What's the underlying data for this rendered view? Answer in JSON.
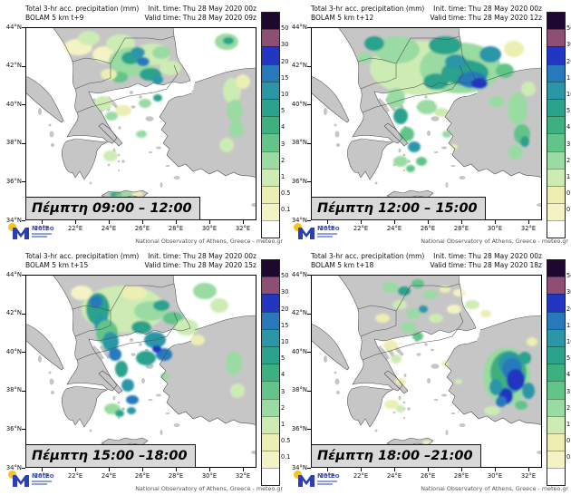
{
  "attribution": "National Observatory of Athens, Greece - meteo.gr",
  "logo": {
    "brand": "Meteo"
  },
  "axes": {
    "lat": [
      "44°N",
      "42°N",
      "40°N",
      "38°N",
      "36°N",
      "34°N"
    ],
    "lon": [
      "20°E",
      "22°E",
      "24°E",
      "26°E",
      "28°E",
      "30°E",
      "32°E"
    ]
  },
  "colorbar": {
    "labels": [
      "50",
      "30",
      "20",
      "15",
      "10",
      "5",
      "4",
      "3",
      "2",
      "1",
      "0.5",
      "0.1"
    ],
    "colors": [
      "#1d082f",
      "#8f4f75",
      "#2236c2",
      "#2779bb",
      "#2b96a8",
      "#2aa28c",
      "#3cb07e",
      "#62c489",
      "#99dba2",
      "#cdecb4",
      "#eceeb2",
      "#f4f3c5",
      "#ffffff"
    ]
  },
  "blob_colors": {
    "y1": "#f4f3c5",
    "y2": "#eceeb2",
    "g1": "#cdecb4",
    "g2": "#99dba2",
    "g3": "#62c489",
    "g4": "#3cb07e",
    "t1": "#2aa28c",
    "t2": "#2b96a8",
    "b1": "#2779bb",
    "b2": "#2236c2",
    "p1": "#8f4f75",
    "p2": "#1d082f"
  },
  "map_colors": {
    "sea": "#ffffff",
    "land": "#c6c6c6",
    "coast": "#4d4d4d",
    "border": "#8a8a8a"
  },
  "panels": [
    {
      "title_line1": "Total 3-hr acc. precipitation (mm)",
      "title_line2": "BOLAM 5 km t+9",
      "init_time": "Init. time: Thu 28 May 2020 00z",
      "valid_time": "Valid time: Thu 28 May 2020 09z",
      "time_label": "Πέμπτη 09:00 – 12:00",
      "blobs": [
        [
          "y1",
          58,
          22,
          16,
          9
        ],
        [
          "g1",
          70,
          12,
          12,
          8
        ],
        [
          "y1",
          88,
          30,
          14,
          9
        ],
        [
          "g1",
          105,
          18,
          16,
          10
        ],
        [
          "g2",
          118,
          38,
          26,
          16
        ],
        [
          "g1",
          140,
          30,
          20,
          12
        ],
        [
          "t1",
          116,
          34,
          10,
          7
        ],
        [
          "t2",
          124,
          28,
          8,
          6
        ],
        [
          "b1",
          130,
          38,
          7,
          5
        ],
        [
          "t1",
          138,
          52,
          12,
          7
        ],
        [
          "t2",
          146,
          58,
          6,
          5
        ],
        [
          "g3",
          104,
          55,
          9,
          6
        ],
        [
          "g2",
          150,
          28,
          10,
          7
        ],
        [
          "g1",
          160,
          45,
          12,
          8
        ],
        [
          "y2",
          92,
          52,
          9,
          6
        ],
        [
          "g2",
          222,
          16,
          13,
          9
        ],
        [
          "t1",
          224,
          15,
          6,
          4
        ],
        [
          "g1",
          228,
          70,
          10,
          14
        ],
        [
          "g2",
          231,
          92,
          9,
          12
        ],
        [
          "g2",
          233,
          112,
          8,
          10
        ],
        [
          "g1",
          222,
          130,
          8,
          8
        ],
        [
          "y2",
          240,
          60,
          8,
          8
        ],
        [
          "g1",
          86,
          84,
          10,
          8
        ],
        [
          "g2",
          95,
          98,
          7,
          5
        ],
        [
          "y2",
          108,
          92,
          9,
          6
        ],
        [
          "g2",
          132,
          84,
          7,
          5
        ],
        [
          "t1",
          146,
          78,
          5,
          4
        ],
        [
          "g2",
          128,
          118,
          6,
          4
        ],
        [
          "g1",
          94,
          142,
          8,
          6
        ],
        [
          "g3",
          100,
          184,
          7,
          3
        ],
        [
          "g2",
          112,
          184,
          6,
          3
        ],
        [
          "y2",
          124,
          184,
          6,
          3
        ],
        [
          "t1",
          97,
          185,
          3,
          2
        ]
      ]
    },
    {
      "title_line1": "Total 3-hr acc. precipitation (mm)",
      "title_line2": "BOLAM 5 km t+12",
      "init_time": "Init. time: Thu 28 May 2020 00z",
      "valid_time": "Valid time: Thu 28 May 2020 12z",
      "time_label": "Πέμπτη 12:00 – 15:00",
      "blobs": [
        [
          "g1",
          120,
          45,
          55,
          30
        ],
        [
          "g2",
          165,
          45,
          45,
          28
        ],
        [
          "g2",
          95,
          25,
          25,
          15
        ],
        [
          "t1",
          148,
          20,
          18,
          10
        ],
        [
          "t1",
          170,
          50,
          26,
          14
        ],
        [
          "b1",
          178,
          58,
          16,
          9
        ],
        [
          "b2",
          186,
          62,
          9,
          6
        ],
        [
          "t2",
          160,
          38,
          12,
          8
        ],
        [
          "t1",
          138,
          60,
          14,
          9
        ],
        [
          "t2",
          198,
          30,
          12,
          9
        ],
        [
          "g3",
          214,
          48,
          10,
          8
        ],
        [
          "t1",
          70,
          18,
          11,
          8
        ],
        [
          "g2",
          60,
          34,
          8,
          6
        ],
        [
          "g1",
          84,
          48,
          10,
          7
        ],
        [
          "g2",
          94,
          78,
          10,
          11
        ],
        [
          "t1",
          99,
          98,
          8,
          9
        ],
        [
          "g3",
          106,
          118,
          8,
          8
        ],
        [
          "t2",
          114,
          132,
          7,
          6
        ],
        [
          "g3",
          122,
          148,
          6,
          5
        ],
        [
          "g2",
          128,
          88,
          11,
          8
        ],
        [
          "g1",
          144,
          94,
          8,
          5
        ],
        [
          "g2",
          205,
          82,
          9,
          6
        ],
        [
          "y2",
          224,
          24,
          11,
          9
        ],
        [
          "g2",
          228,
          90,
          11,
          18
        ],
        [
          "g3",
          233,
          118,
          9,
          11
        ],
        [
          "g2",
          226,
          138,
          8,
          8
        ],
        [
          "g1",
          240,
          68,
          8,
          8
        ],
        [
          "t1",
          236,
          126,
          5,
          6
        ],
        [
          "g2",
          150,
          118,
          5,
          4
        ],
        [
          "y2",
          158,
          132,
          4,
          3
        ],
        [
          "g2",
          99,
          148,
          8,
          6
        ],
        [
          "g3",
          110,
          156,
          5,
          4
        ]
      ]
    },
    {
      "title_line1": "Total 3-hr acc. precipitation (mm)",
      "title_line2": "BOLAM 5 km t+15",
      "init_time": "Init. time: Thu 28 May 2020 00z",
      "valid_time": "Valid time: Thu 28 May 2020 15z",
      "time_label": "Πέμπτη 15:00 –18:00",
      "blobs": [
        [
          "g1",
          108,
          38,
          46,
          26
        ],
        [
          "y1",
          62,
          20,
          12,
          8
        ],
        [
          "y2",
          120,
          20,
          14,
          8
        ],
        [
          "t1",
          80,
          38,
          13,
          18
        ],
        [
          "b1",
          78,
          30,
          7,
          7
        ],
        [
          "t2",
          85,
          55,
          9,
          9
        ],
        [
          "g3",
          90,
          64,
          12,
          14
        ],
        [
          "t2",
          94,
          74,
          9,
          11
        ],
        [
          "b1",
          99,
          88,
          7,
          7
        ],
        [
          "t1",
          106,
          104,
          7,
          9
        ],
        [
          "t2",
          113,
          122,
          7,
          7
        ],
        [
          "b1",
          118,
          138,
          7,
          5
        ],
        [
          "t2",
          117,
          150,
          5,
          4
        ],
        [
          "g2",
          138,
          40,
          18,
          11
        ],
        [
          "t1",
          150,
          34,
          9,
          6
        ],
        [
          "g3",
          163,
          48,
          11,
          7
        ],
        [
          "t1",
          128,
          58,
          11,
          7
        ],
        [
          "t2",
          143,
          72,
          12,
          9
        ],
        [
          "b1",
          153,
          88,
          9,
          7
        ],
        [
          "t1",
          133,
          92,
          11,
          8
        ],
        [
          "b2",
          145,
          82,
          5,
          4
        ],
        [
          "g2",
          198,
          18,
          13,
          9
        ],
        [
          "g1",
          214,
          34,
          10,
          8
        ],
        [
          "g1",
          178,
          58,
          13,
          9
        ],
        [
          "y2",
          190,
          72,
          8,
          6
        ],
        [
          "g2",
          230,
          98,
          9,
          13
        ],
        [
          "g1",
          234,
          128,
          8,
          8
        ],
        [
          "g2",
          154,
          112,
          5,
          4
        ],
        [
          "g2",
          96,
          148,
          9,
          6
        ],
        [
          "t1",
          104,
          153,
          5,
          4
        ]
      ]
    },
    {
      "title_line1": "Total 3-hr acc. precipitation (mm)",
      "title_line2": "BOLAM 5 km t+18",
      "init_time": "Init. time: Thu 28 May 2020 00z",
      "valid_time": "Valid time: Thu 28 May 2020 18z",
      "time_label": "Πέμπτη 18:00 –21:00",
      "blobs": [
        [
          "g2",
          88,
          14,
          9,
          6
        ],
        [
          "t1",
          103,
          18,
          7,
          5
        ],
        [
          "g3",
          118,
          10,
          7,
          5
        ],
        [
          "g2",
          132,
          22,
          8,
          5
        ],
        [
          "y2",
          148,
          16,
          6,
          4
        ],
        [
          "y1",
          164,
          20,
          7,
          4
        ],
        [
          "g1",
          98,
          33,
          8,
          5
        ],
        [
          "g2",
          113,
          43,
          8,
          6
        ],
        [
          "t2",
          124,
          38,
          5,
          4
        ],
        [
          "y2",
          79,
          48,
          8,
          5
        ],
        [
          "g1",
          138,
          48,
          8,
          5
        ],
        [
          "y1",
          158,
          38,
          8,
          5
        ],
        [
          "g2",
          108,
          58,
          9,
          6
        ],
        [
          "g3",
          118,
          68,
          6,
          5
        ],
        [
          "g1",
          178,
          33,
          8,
          5
        ],
        [
          "y2",
          193,
          43,
          6,
          4
        ],
        [
          "y2",
          88,
          78,
          8,
          6
        ],
        [
          "g1",
          94,
          93,
          6,
          5
        ],
        [
          "y2",
          99,
          118,
          6,
          4
        ],
        [
          "y2",
          89,
          143,
          8,
          5
        ],
        [
          "g1",
          99,
          148,
          5,
          4
        ],
        [
          "y2",
          148,
          98,
          4,
          3
        ],
        [
          "g1",
          163,
          118,
          4,
          3
        ],
        [
          "g2",
          216,
          112,
          26,
          32
        ],
        [
          "g4",
          218,
          108,
          20,
          24
        ],
        [
          "t2",
          220,
          98,
          13,
          13
        ],
        [
          "b1",
          222,
          104,
          11,
          12
        ],
        [
          "b2",
          226,
          116,
          10,
          12
        ],
        [
          "b2",
          215,
          134,
          8,
          9
        ],
        [
          "b1",
          210,
          140,
          6,
          6
        ],
        [
          "t2",
          204,
          124,
          7,
          9
        ],
        [
          "t1",
          236,
          92,
          7,
          7
        ],
        [
          "t2",
          240,
          128,
          7,
          9
        ],
        [
          "g3",
          232,
          144,
          7,
          5
        ],
        [
          "g1",
          200,
          150,
          9,
          5
        ],
        [
          "y2",
          244,
          74,
          6,
          5
        ],
        [
          "y1",
          128,
          185,
          5,
          2
        ]
      ]
    }
  ]
}
